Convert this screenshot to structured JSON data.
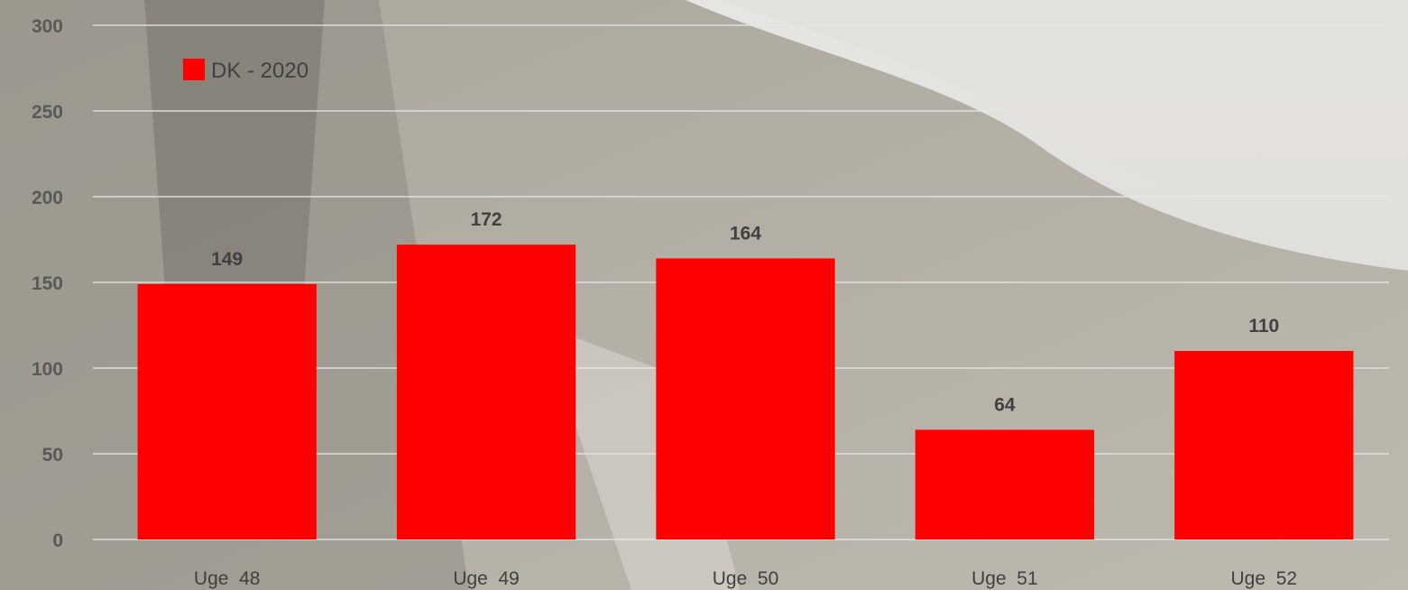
{
  "background": {
    "description_icon": "photo-background-icon"
  },
  "chart_data": {
    "type": "bar",
    "categories": [
      "Uge  48",
      "Uge  49",
      "Uge  50",
      "Uge  51",
      "Uge  52"
    ],
    "series": [
      {
        "name": "DK - 2020",
        "values": [
          149,
          172,
          164,
          64,
          110
        ],
        "color": "#ff0000"
      }
    ],
    "ylim": [
      0,
      300
    ],
    "yticks": [
      0,
      50,
      100,
      150,
      200,
      250,
      300
    ],
    "grid": true,
    "legend": "top-left",
    "data_labels": true
  }
}
